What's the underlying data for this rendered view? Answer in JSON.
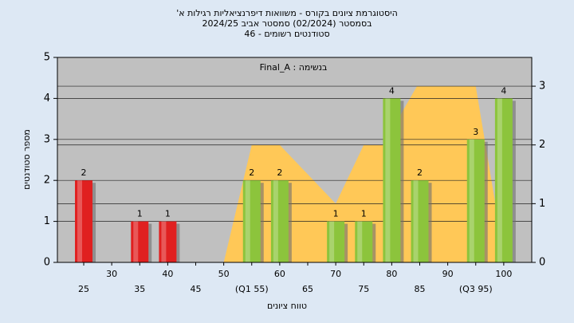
{
  "chart_data": {
    "type": "bar",
    "title": "היסטוגרמת ציונים בקורס - משוואות דיפרנציאליות רגילות א'",
    "subtitle": "בסמסטר (02/2024) סמסטר אביב 2024/25",
    "subtitle2": "סטודנטים רשומים - 46",
    "annotation": "בנשימה : Final_A",
    "x_label": "טווח ציונים",
    "y_label": "מספר סטודנטים",
    "x": [
      25,
      30,
      35,
      40,
      45,
      50,
      55,
      60,
      65,
      70,
      75,
      80,
      85,
      90,
      95,
      100
    ],
    "values": [
      2,
      0,
      1,
      1,
      0,
      0,
      2,
      2,
      0,
      1,
      1,
      4,
      2,
      0,
      3,
      4
    ],
    "colors": [
      "#e02020",
      "#e02020",
      "#e02020",
      "#e02020",
      "#e02020",
      "#e02020",
      "#8cc43c",
      "#8cc43c",
      "#8cc43c",
      "#8cc43c",
      "#8cc43c",
      "#8cc43c",
      "#8cc43c",
      "#8cc43c",
      "#8cc43c",
      "#8cc43c"
    ],
    "area": {
      "axis": "y2",
      "color": "#ffc857",
      "x": [
        50,
        55,
        60,
        70,
        75,
        78.5,
        84.5,
        95,
        98.5
      ],
      "values": [
        0,
        2,
        2,
        1,
        2,
        2,
        3,
        3,
        1
      ]
    },
    "xlim": [
      20.3,
      105
    ],
    "xticks": [
      25,
      30,
      35,
      40,
      45,
      50,
      {
        "value": 55,
        "label": "(Q1 55)"
      },
      60,
      65,
      70,
      75,
      80,
      85,
      90,
      {
        "value": 95,
        "label": "(Q3 95)"
      },
      100
    ],
    "ylim": [
      0,
      5
    ],
    "yticks": [
      0,
      1,
      2,
      3,
      4,
      5
    ],
    "y2lim": [
      0,
      3.49
    ],
    "y2ticks": [
      0,
      1,
      2,
      3
    ],
    "grid": true
  }
}
